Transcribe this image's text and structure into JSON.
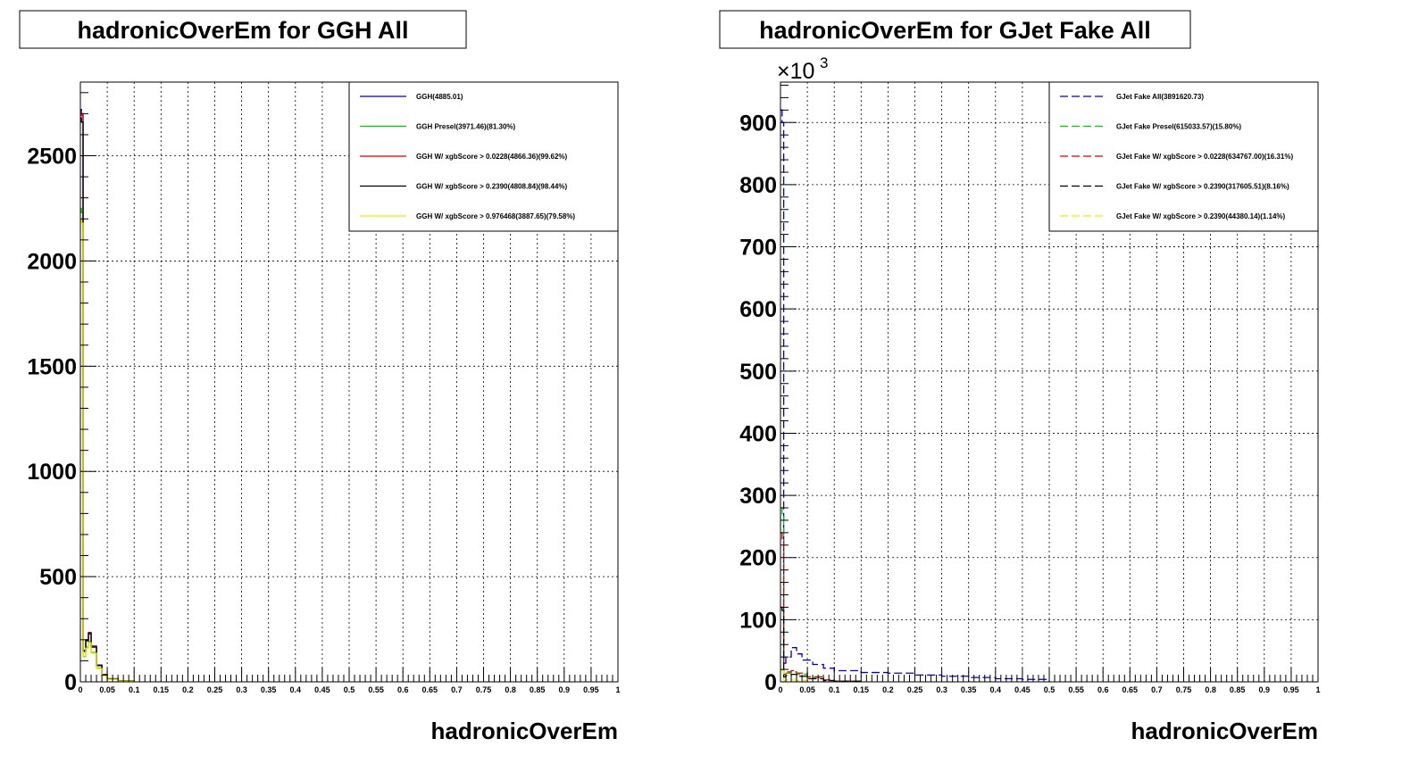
{
  "chart_data": [
    {
      "type": "line",
      "title": "hadronicOverEm for GGH All",
      "xlabel": "hadronicOverEm",
      "ylabel": "",
      "xlim": [
        0,
        1
      ],
      "ylim": [
        0,
        2850
      ],
      "y_multiplier": "",
      "grid": true,
      "legend_position": "top-right",
      "x_ticks": [
        "0",
        "0.05",
        "0.1",
        "0.15",
        "0.2",
        "0.25",
        "0.3",
        "0.35",
        "0.4",
        "0.45",
        "0.5",
        "0.55",
        "0.6",
        "0.65",
        "0.7",
        "0.75",
        "0.8",
        "0.85",
        "0.9",
        "0.95",
        "1"
      ],
      "y_ticks": [
        0,
        500,
        1000,
        1500,
        2000,
        2500
      ],
      "series": [
        {
          "name": "GGH(4885.01)",
          "color": "#0000cc",
          "dash": "solid",
          "x": [
            0,
            0.002,
            0.005,
            0.01,
            0.015,
            0.02,
            0.03,
            0.04,
            0.05,
            0.07,
            0.1
          ],
          "y": [
            2720,
            2700,
            150,
            200,
            235,
            170,
            80,
            35,
            15,
            5,
            0
          ]
        },
        {
          "name": "GGH Presel(3971.46)(81.30%)",
          "color": "#00cc00",
          "dash": "solid",
          "x": [
            0,
            0.002,
            0.005,
            0.01,
            0.015,
            0.02,
            0.03,
            0.04,
            0.05,
            0.07,
            0.1
          ],
          "y": [
            2250,
            2230,
            120,
            165,
            190,
            140,
            65,
            28,
            12,
            4,
            0
          ]
        },
        {
          "name": "GGH W/ xgbScore > 0.0228(4866.36)(99.62%)",
          "color": "#dd0000",
          "dash": "solid",
          "x": [
            0,
            0.002,
            0.005,
            0.01,
            0.015,
            0.02,
            0.03,
            0.04,
            0.05,
            0.07,
            0.1
          ],
          "y": [
            2710,
            2690,
            148,
            198,
            232,
            168,
            78,
            34,
            15,
            5,
            0
          ]
        },
        {
          "name": "GGH W/ xgbScore > 0.2390(4808.84)(98.44%)",
          "color": "#000000",
          "dash": "solid",
          "x": [
            0,
            0.002,
            0.005,
            0.01,
            0.015,
            0.02,
            0.03,
            0.04,
            0.05,
            0.07,
            0.1
          ],
          "y": [
            2680,
            2660,
            145,
            195,
            228,
            165,
            77,
            33,
            14,
            5,
            0
          ]
        },
        {
          "name": "GGH W/ xgbScore > 0.976468(3887.65)(79.58%)",
          "color": "#eeee00",
          "dash": "solid",
          "x": [
            0,
            0.002,
            0.005,
            0.01,
            0.015,
            0.02,
            0.03,
            0.04,
            0.05,
            0.07,
            0.1
          ],
          "y": [
            2200,
            2180,
            118,
            160,
            186,
            136,
            63,
            27,
            12,
            4,
            0
          ]
        }
      ]
    },
    {
      "type": "line",
      "title": "hadronicOverEm for GJet Fake All",
      "xlabel": "hadronicOverEm",
      "ylabel": "",
      "xlim": [
        0,
        1
      ],
      "ylim": [
        0,
        965
      ],
      "y_multiplier": "×10",
      "y_multiplier_exp": "3",
      "grid": true,
      "legend_position": "top-right",
      "x_ticks": [
        "0",
        "0.05",
        "0.1",
        "0.15",
        "0.2",
        "0.25",
        "0.3",
        "0.35",
        "0.4",
        "0.45",
        "0.5",
        "0.55",
        "0.6",
        "0.65",
        "0.7",
        "0.75",
        "0.8",
        "0.85",
        "0.9",
        "0.95",
        "1"
      ],
      "y_ticks": [
        0,
        100,
        200,
        300,
        400,
        500,
        600,
        700,
        800,
        900
      ],
      "series": [
        {
          "name": "GJet Fake All(3891620.73)",
          "color": "#0000cc",
          "dash": "dashed",
          "x": [
            0,
            0.003,
            0.006,
            0.01,
            0.02,
            0.03,
            0.04,
            0.06,
            0.08,
            0.1,
            0.15,
            0.2,
            0.25,
            0.3,
            0.35,
            0.4,
            0.45,
            0.5
          ],
          "y": [
            920,
            900,
            30,
            40,
            55,
            45,
            35,
            28,
            22,
            18,
            15,
            14,
            11,
            9,
            7,
            5,
            4,
            0
          ]
        },
        {
          "name": "GJet Fake Presel(615033.57)(15.80%)",
          "color": "#00cc00",
          "dash": "dashed",
          "x": [
            0,
            0.003,
            0.006,
            0.01,
            0.02,
            0.03,
            0.05,
            0.08,
            0.1,
            0.15
          ],
          "y": [
            280,
            270,
            10,
            14,
            16,
            12,
            7,
            3,
            1,
            0
          ]
        },
        {
          "name": "GJet Fake W/ xgbScore > 0.0228(634767.00)(16.31%)",
          "color": "#dd0000",
          "dash": "dashed",
          "x": [
            0,
            0.003,
            0.006,
            0.01,
            0.02,
            0.03,
            0.05,
            0.08,
            0.1,
            0.15
          ],
          "y": [
            240,
            230,
            12,
            16,
            18,
            14,
            8,
            3,
            1,
            0
          ]
        },
        {
          "name": "GJet Fake W/ xgbScore > 0.2390(317605.51)(8.16%)",
          "color": "#000000",
          "dash": "dashed",
          "x": [
            0,
            0.003,
            0.006,
            0.01,
            0.02,
            0.03,
            0.05,
            0.08,
            0.1,
            0.15
          ],
          "y": [
            120,
            115,
            8,
            10,
            12,
            9,
            5,
            2,
            1,
            0
          ]
        },
        {
          "name": "GJet Fake W/ xgbScore > 0.2390(44380.14)(1.14%)",
          "color": "#eeee00",
          "dash": "dashed",
          "x": [
            0,
            0.003,
            0.006,
            0.01,
            0.02,
            0.03,
            0.05
          ],
          "y": [
            20,
            18,
            2,
            3,
            3,
            2,
            0
          ]
        }
      ]
    }
  ]
}
